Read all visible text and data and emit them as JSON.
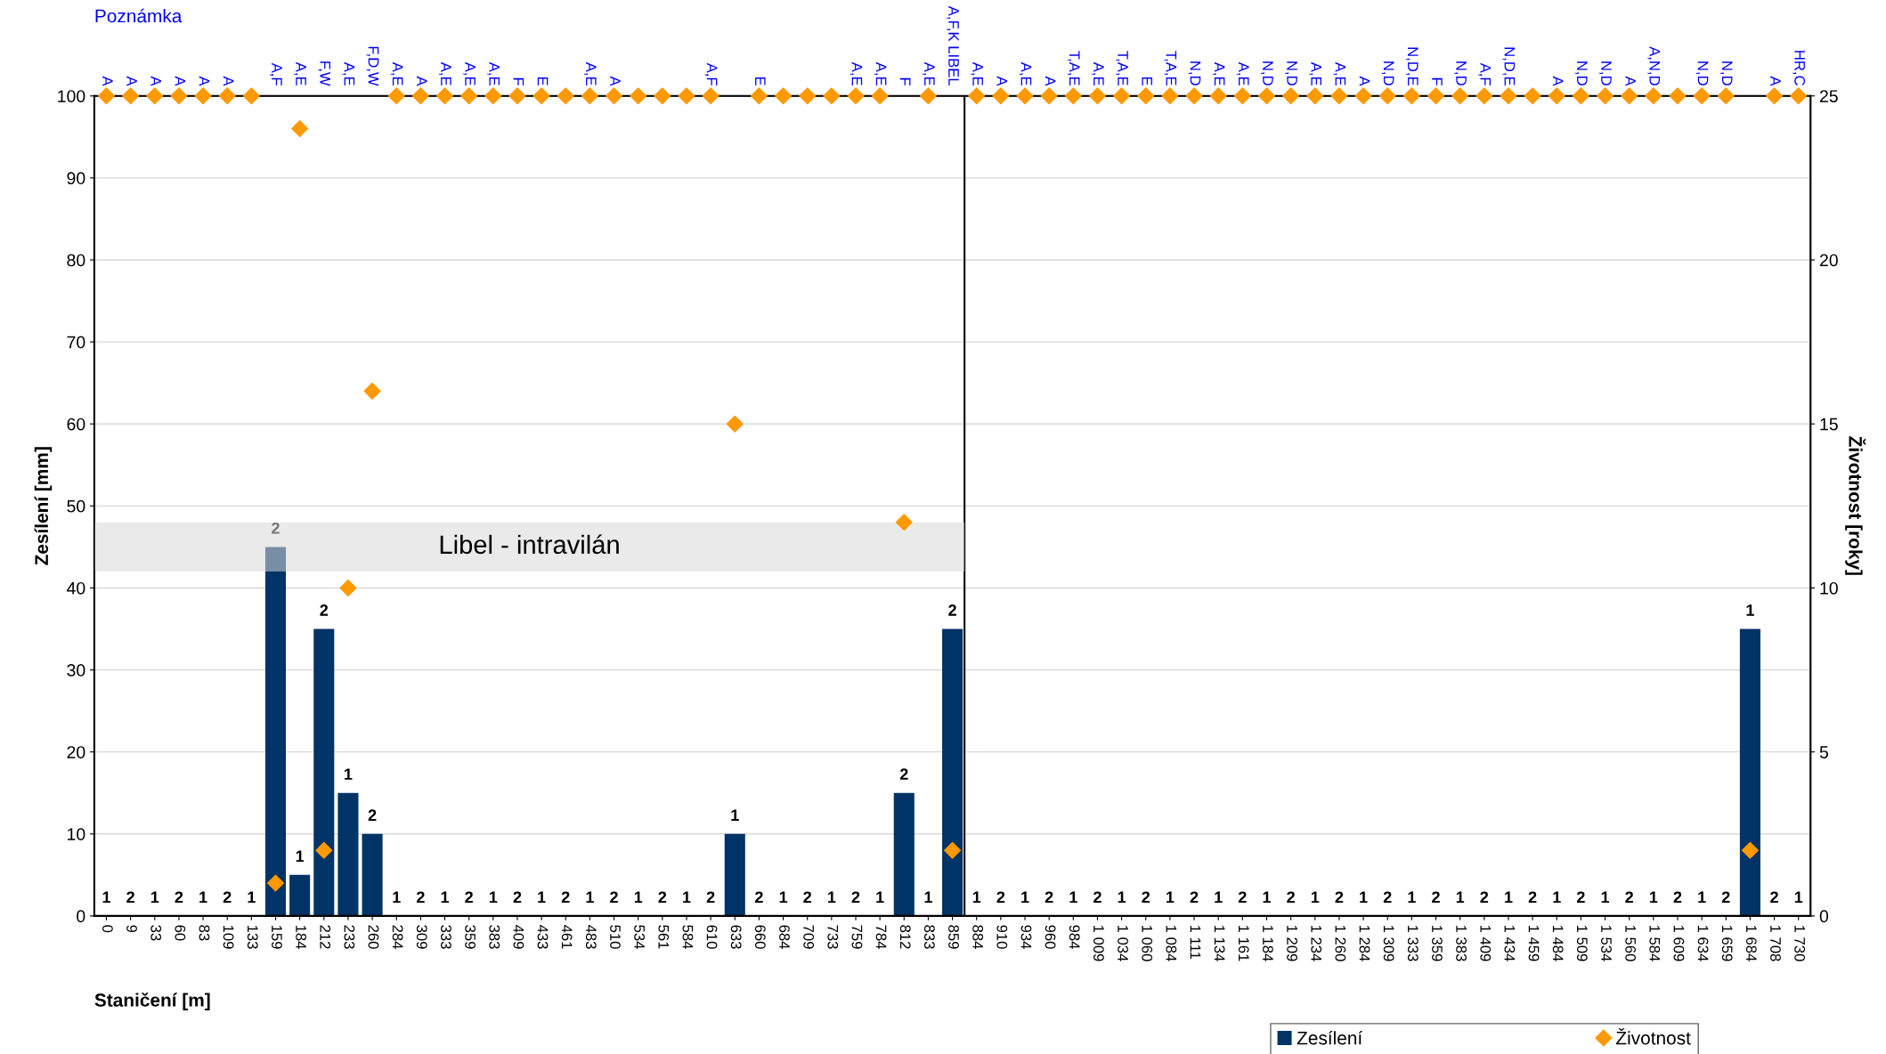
{
  "chart_data": {
    "type": "bar",
    "xlabel": "Staničení [m]",
    "ylabel": "Zesílení [mm]",
    "y2label": "Životnost [roky]",
    "categories": [
      "0",
      "9",
      "33",
      "60",
      "83",
      "109",
      "133",
      "159",
      "184",
      "212",
      "233",
      "260",
      "284",
      "309",
      "333",
      "359",
      "383",
      "409",
      "433",
      "461",
      "483",
      "510",
      "534",
      "561",
      "584",
      "610",
      "633",
      "660",
      "684",
      "709",
      "733",
      "759",
      "784",
      "812",
      "833",
      "859",
      "884",
      "910",
      "934",
      "960",
      "984",
      "1 009",
      "1 034",
      "1 060",
      "1 084",
      "1 111",
      "1 134",
      "1 161",
      "1 184",
      "1 209",
      "1 234",
      "1 260",
      "1 284",
      "1 309",
      "1 333",
      "1 359",
      "1 383",
      "1 409",
      "1 434",
      "1 459",
      "1 484",
      "1 509",
      "1 534",
      "1 560",
      "1 584",
      "1 609",
      "1 634",
      "1 659",
      "1 684",
      "1 708",
      "1 730"
    ],
    "series": [
      {
        "name": "Zesílení",
        "color": "#003366",
        "values": [
          0,
          0,
          0,
          0,
          0,
          0,
          0,
          45,
          5,
          35,
          15,
          10,
          0,
          0,
          0,
          0,
          0,
          0,
          0,
          0,
          0,
          0,
          0,
          0,
          0,
          0,
          10,
          0,
          0,
          0,
          0,
          0,
          0,
          15,
          0,
          35,
          0,
          0,
          0,
          0,
          0,
          0,
          0,
          0,
          0,
          0,
          0,
          0,
          0,
          0,
          0,
          0,
          0,
          0,
          0,
          0,
          0,
          0,
          0,
          0,
          0,
          0,
          0,
          0,
          0,
          0,
          0,
          0,
          35,
          0,
          0
        ]
      },
      {
        "name": "Životnost",
        "type": "scatter",
        "axis": "y2",
        "marker": "diamond",
        "color": "#ff9900",
        "values": [
          25,
          25,
          25,
          25,
          25,
          25,
          25,
          1,
          24,
          2,
          10,
          16,
          25,
          25,
          25,
          25,
          25,
          25,
          25,
          25,
          25,
          25,
          25,
          25,
          25,
          25,
          15,
          25,
          25,
          25,
          25,
          25,
          25,
          12,
          25,
          2,
          25,
          25,
          25,
          25,
          25,
          25,
          25,
          25,
          25,
          25,
          25,
          25,
          25,
          25,
          25,
          25,
          25,
          25,
          25,
          25,
          25,
          25,
          25,
          25,
          25,
          25,
          25,
          25,
          25,
          25,
          25,
          25,
          2,
          25,
          25
        ]
      }
    ],
    "ylim": [
      0,
      100
    ],
    "yticks": [
      0,
      10,
      20,
      30,
      40,
      50,
      60,
      70,
      80,
      90,
      100
    ],
    "y2lim": [
      0,
      25
    ],
    "y2ticks": [
      0,
      5,
      10,
      15,
      20,
      25
    ],
    "grid": "y",
    "legend": "bottom right",
    "ref_lines": [
      {
        "axis": "x",
        "value": "859",
        "color": "#000000"
      }
    ],
    "bands": [
      {
        "axis": "y",
        "from": 42,
        "to": 48,
        "label": "Libel - intravilán",
        "color": "#d9d9d9"
      }
    ],
    "annotations": [
      "Poznámka",
      "A",
      "A",
      "A",
      "A",
      "A",
      "A",
      null,
      "A,F",
      "A,E",
      "F,W",
      "A,E",
      "F,D,W",
      "A,E",
      "A",
      "A,E",
      "A,E",
      "A,E",
      "F",
      "E",
      null,
      "A,E",
      "A",
      null,
      null,
      null,
      "A,F",
      null,
      "E",
      null,
      null,
      null,
      "A,E",
      "A,E",
      "F",
      "A,E",
      "A,F,K LIBEL",
      "A,E",
      "A",
      "A,E",
      "A",
      "T,A,E",
      "A,E",
      "T,A,E",
      "E",
      "T,A,E",
      "N,D",
      "A,E",
      "A,E",
      "N,D",
      "N,D",
      "A,E",
      "A,E",
      "A",
      "N,D",
      "N,D,E",
      "F",
      "N,D",
      "A,F",
      "N,D,E",
      null,
      "A",
      "N,D",
      "N,D",
      "A",
      "A,N,D",
      null,
      "N,D",
      "N,D",
      null,
      "A",
      "HR,C",
      "1",
      "2",
      "1",
      "2",
      "1",
      "2",
      "1",
      "2",
      "1",
      "2",
      "1",
      "2",
      "1",
      "2",
      "1",
      "2",
      "1",
      "2",
      "1",
      "2",
      "1",
      "2",
      "1",
      "2",
      "1",
      "2",
      "1",
      "2",
      "1",
      "2",
      "1",
      "2",
      "1",
      "2",
      "1",
      "2",
      "1",
      "2",
      "1",
      "2",
      "1",
      "2",
      "1",
      "2",
      "1",
      "2",
      "1",
      "2",
      "1",
      "2",
      "1",
      "2",
      "1",
      "2",
      "1",
      "2",
      "1",
      "2",
      "1",
      "2",
      "1",
      "2",
      "1",
      "2",
      "1",
      "2",
      "1",
      "2",
      "1",
      "2",
      "1"
    ]
  }
}
